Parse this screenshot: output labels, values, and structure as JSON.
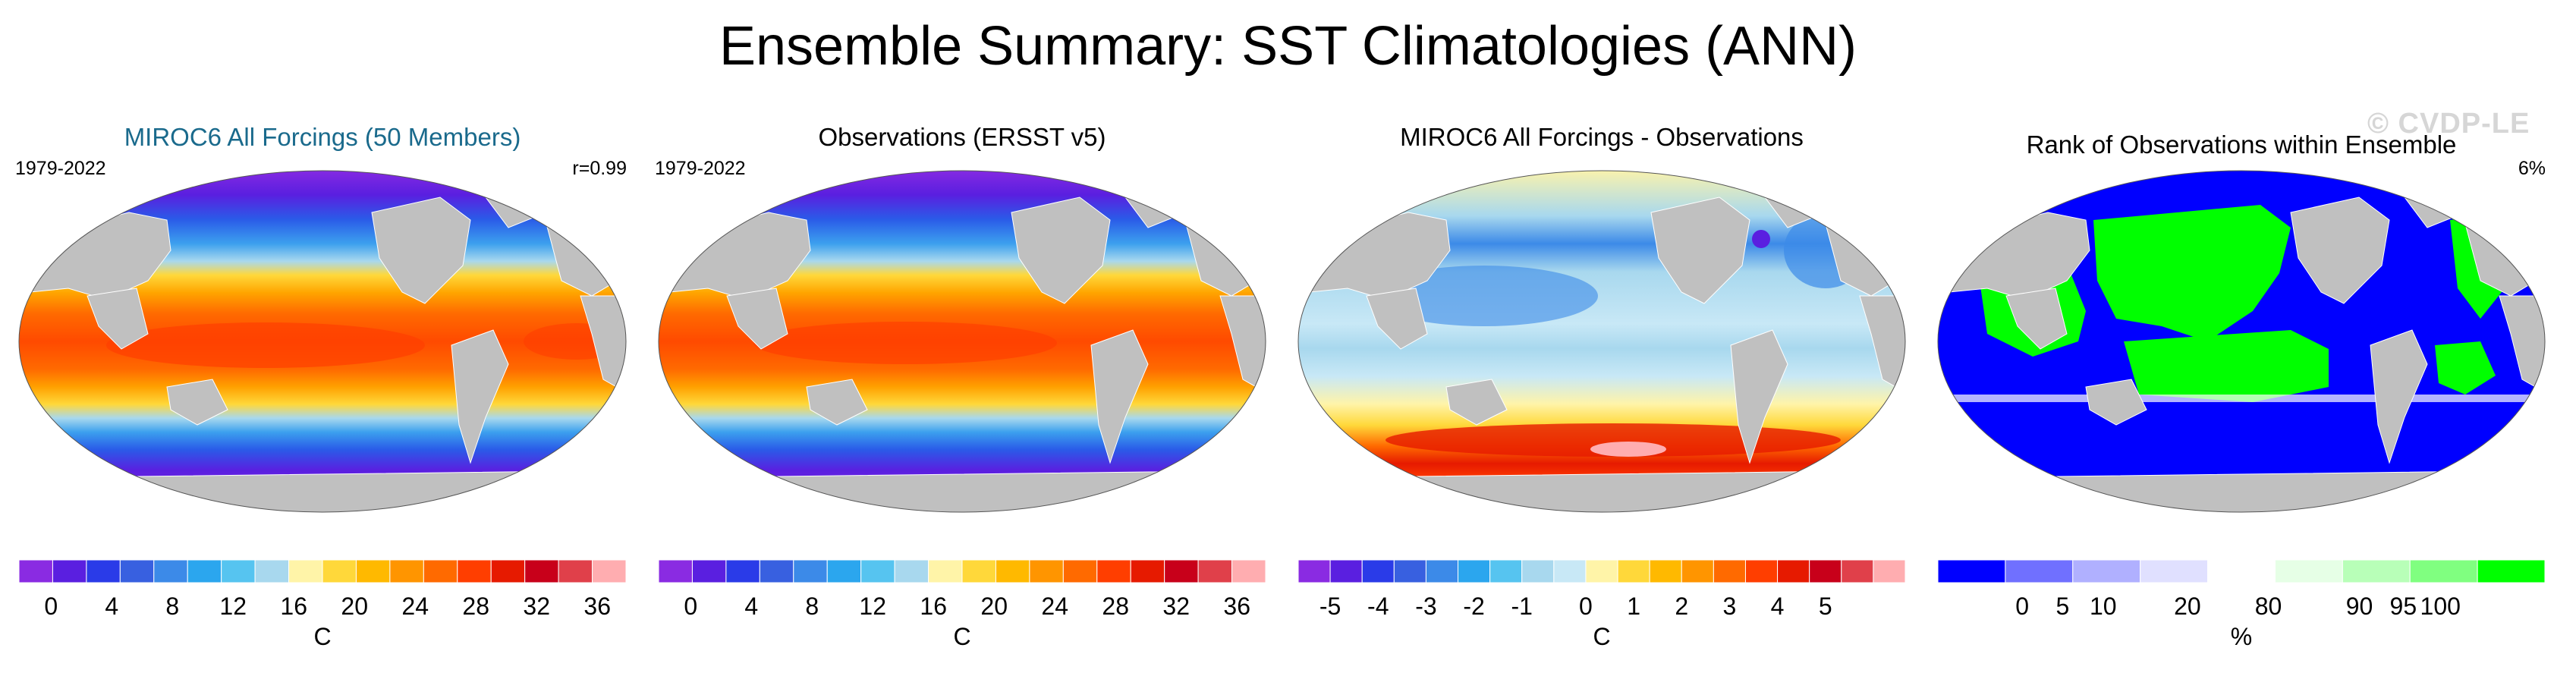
{
  "title": "Ensemble Summary: SST Climatologies (ANN)",
  "watermark": "© CVDP-LE",
  "colors": {
    "land": "#c0c0c0",
    "title_blue": "#1a6a8c",
    "sst_scale": [
      "#8a2be2",
      "#5a1fe0",
      "#2a3be8",
      "#3860e0",
      "#3c8ae8",
      "#2ba6ee",
      "#56c4f0",
      "#a8d8ee",
      "#fff4a8",
      "#ffd83a",
      "#ffb900",
      "#ff9500",
      "#ff6a00",
      "#ff3e00",
      "#e61a00",
      "#c8001a",
      "#e0404a",
      "#ffadb0"
    ],
    "diff_scale": [
      "#8a2be2",
      "#5a1fe0",
      "#2a3be8",
      "#3860e0",
      "#3c8ae8",
      "#2ba6ee",
      "#56c4f0",
      "#a8d8ee",
      "#c8e8f6",
      "#fff4a8",
      "#ffd83a",
      "#ffb900",
      "#ff9500",
      "#ff6a00",
      "#ff3e00",
      "#e61a00",
      "#c8001a",
      "#e0404a",
      "#ffadb0"
    ],
    "rank_scale": [
      "#0000ff",
      "#7070ff",
      "#b0b0ff",
      "#e0e0ff",
      "#ffffff",
      "#e6ffe6",
      "#b8ffb8",
      "#80ff80",
      "#00ff00"
    ]
  },
  "panels": [
    {
      "title": "MIROC6 All Forcings (50 Members)",
      "left_label": "1979-2022",
      "right_label": "r=0.99",
      "unit": "C",
      "ticks": [
        "0",
        "4",
        "8",
        "12",
        "16",
        "20",
        "24",
        "28",
        "32",
        "36"
      ]
    },
    {
      "title": "Observations (ERSST v5)",
      "left_label": "1979-2022",
      "right_label": "",
      "unit": "C",
      "ticks": [
        "0",
        "4",
        "8",
        "12",
        "16",
        "20",
        "24",
        "28",
        "32",
        "36"
      ]
    },
    {
      "title": "MIROC6 All Forcings - Observations",
      "left_label": "",
      "right_label": "",
      "unit": "C",
      "ticks": [
        "-5",
        "-4",
        "-3",
        "-2",
        "-1",
        "0",
        "1",
        "2",
        "3",
        "4",
        "5"
      ]
    },
    {
      "title": "Rank of Observations within Ensemble",
      "left_label": "",
      "right_label": "6%",
      "unit": "%",
      "ticks": [
        "0",
        "5",
        "10",
        "20",
        "80",
        "90",
        "95",
        "100"
      ]
    }
  ],
  "chart_data": [
    {
      "type": "heatmap",
      "title": "MIROC6 All Forcings (50 Members)",
      "period": "1979-2022",
      "pattern_correlation": 0.99,
      "colorbar_unit": "C",
      "colorbar_ticks": [
        0,
        4,
        8,
        12,
        16,
        20,
        24,
        28,
        32,
        36
      ],
      "zonal_sst_profile": {
        "lat": [
          75,
          60,
          45,
          30,
          15,
          0,
          -15,
          -30,
          -45,
          -60,
          -70
        ],
        "value": [
          -1,
          3,
          10,
          20,
          27,
          28,
          27,
          21,
          12,
          1,
          -1
        ]
      }
    },
    {
      "type": "heatmap",
      "title": "Observations (ERSST v5)",
      "period": "1979-2022",
      "colorbar_unit": "C",
      "colorbar_ticks": [
        0,
        4,
        8,
        12,
        16,
        20,
        24,
        28,
        32,
        36
      ],
      "zonal_sst_profile": {
        "lat": [
          75,
          60,
          45,
          30,
          15,
          0,
          -15,
          -30,
          -45,
          -60,
          -70
        ],
        "value": [
          -1,
          4,
          11,
          21,
          27,
          28,
          26,
          20,
          11,
          1,
          -1
        ]
      }
    },
    {
      "type": "heatmap",
      "title": "MIROC6 All Forcings - Observations",
      "colorbar_unit": "C",
      "colorbar_ticks": [
        -5,
        -4,
        -3,
        -2,
        -1,
        0,
        1,
        2,
        3,
        4,
        5
      ],
      "zonal_bias_profile": {
        "lat": [
          75,
          60,
          45,
          30,
          15,
          0,
          -15,
          -30,
          -45,
          -55,
          -62,
          -70
        ],
        "value": [
          0.5,
          -1.5,
          -1,
          -0.8,
          -0.5,
          -0.5,
          -0.2,
          0.3,
          1,
          3,
          3.5,
          0.5
        ]
      }
    },
    {
      "type": "heatmap",
      "title": "Rank of Observations within Ensemble",
      "area_fraction_label": "6%",
      "colorbar_unit": "%",
      "colorbar_ticks": [
        0,
        5,
        10,
        20,
        80,
        90,
        95,
        100
      ],
      "dominant_ranks": {
        "north_pacific": 100,
        "north_atlantic": 100,
        "indian_ocean": 100,
        "tropical_pacific_east": 0,
        "southern_ocean": 0,
        "south_atlantic": 0
      }
    }
  ]
}
